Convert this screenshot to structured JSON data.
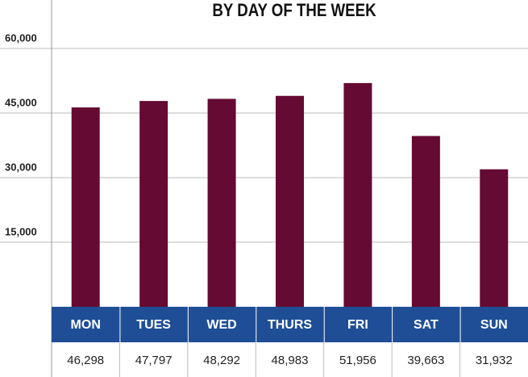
{
  "chart_data": {
    "type": "bar",
    "title": "BY DAY OF THE WEEK",
    "categories": [
      "MON",
      "TUES",
      "WED",
      "THURS",
      "FRI",
      "SAT",
      "SUN"
    ],
    "values": [
      46298,
      47797,
      48292,
      48983,
      51956,
      39663,
      31932
    ],
    "value_labels": [
      "46,298",
      "47,797",
      "48,292",
      "48,983",
      "51,956",
      "39,663",
      "31,932"
    ],
    "color": "#650a32",
    "ylim": [
      0,
      71250
    ],
    "yticks": [
      {
        "value": 15000,
        "label": "15,000"
      },
      {
        "value": 30000,
        "label": "30,000"
      },
      {
        "value": 45000,
        "label": "45,000"
      },
      {
        "value": 60000,
        "label": "60,000"
      }
    ],
    "grid": true
  }
}
